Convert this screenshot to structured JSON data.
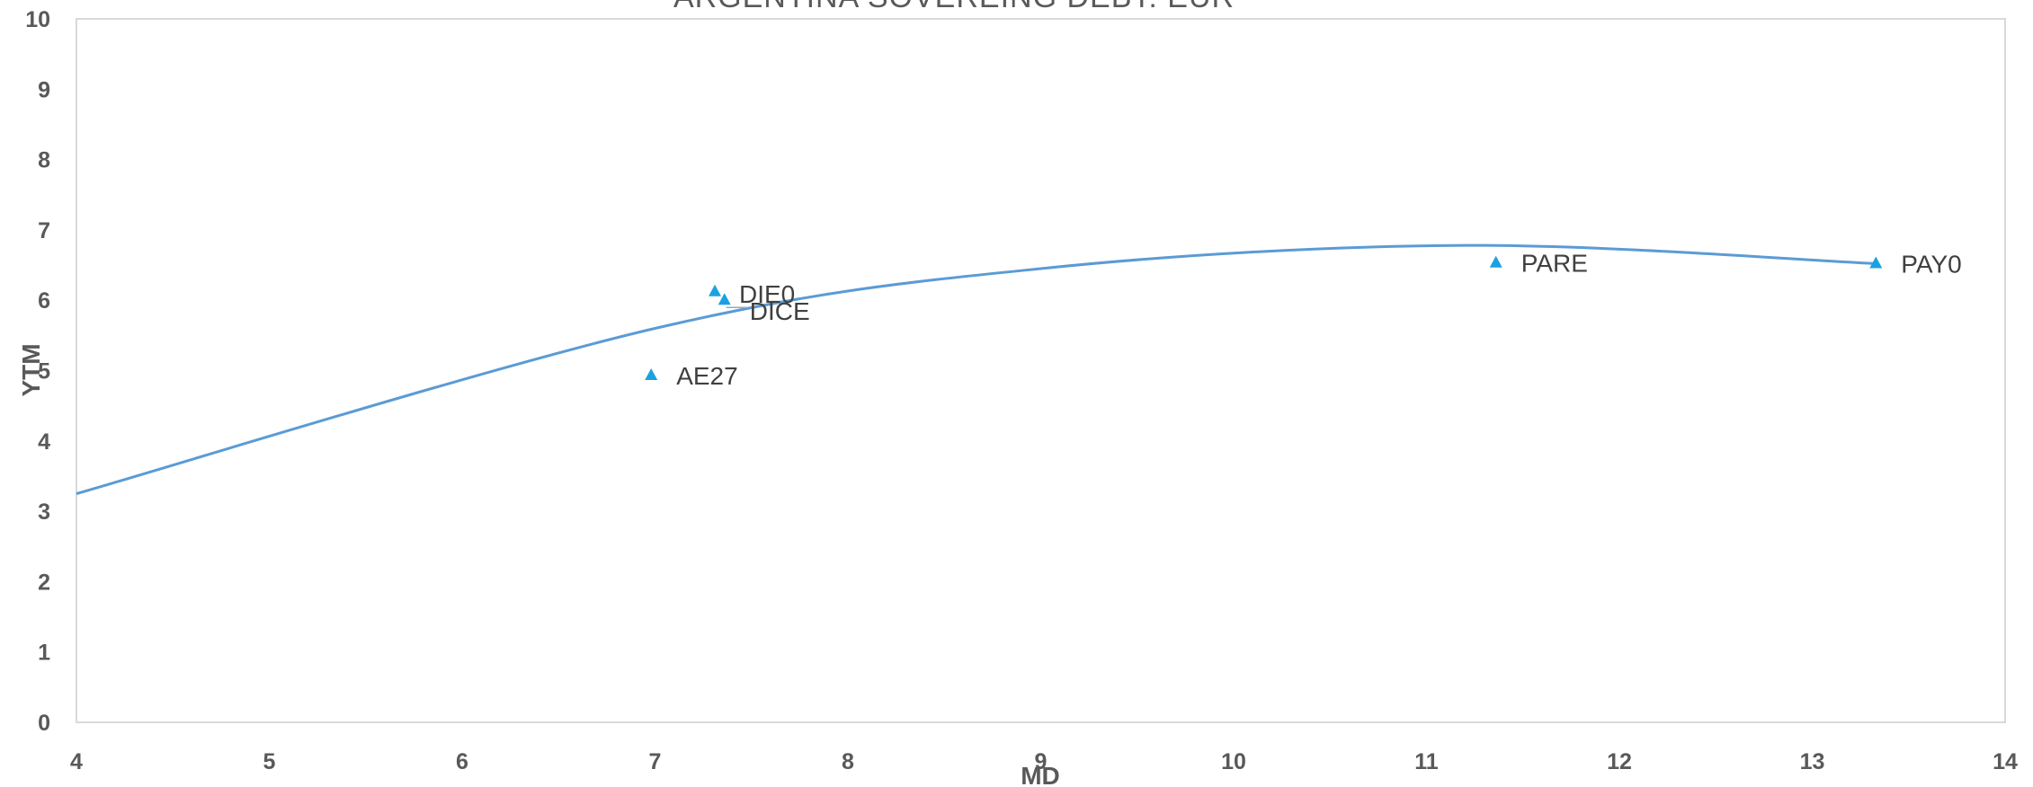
{
  "chart_data": {
    "type": "scatter",
    "title": "ARGENTINA SOVEREING DEBT: EUR",
    "xlabel": "MD",
    "ylabel": "YTM",
    "xlim": [
      4,
      14
    ],
    "ylim": [
      0,
      10
    ],
    "x_ticks": [
      "4",
      "5",
      "6",
      "7",
      "8",
      "9",
      "10",
      "11",
      "12",
      "13",
      "14"
    ],
    "y_ticks": [
      "0",
      "1",
      "2",
      "3",
      "4",
      "5",
      "6",
      "7",
      "8",
      "9",
      "10"
    ],
    "grid": false,
    "series": [
      {
        "marker": "triangle",
        "color": "#1BA1E2",
        "points": [
          {
            "label": "AE27",
            "x": 6.98,
            "y": 4.93
          },
          {
            "label": "DIE0",
            "x": 7.31,
            "y": 6.12
          },
          {
            "label": "DICE",
            "x": 7.36,
            "y": 6.0
          },
          {
            "label": "PARE",
            "x": 11.36,
            "y": 6.53
          },
          {
            "label": "PAY0",
            "x": 13.33,
            "y": 6.52
          }
        ]
      }
    ],
    "trendline": {
      "type": "polynomial",
      "color": "#5B9BD5",
      "points": [
        [
          4,
          3.25
        ],
        [
          7,
          5.6
        ],
        [
          9,
          6.45
        ],
        [
          11.2,
          6.78
        ],
        [
          13.33,
          6.52
        ]
      ]
    }
  }
}
